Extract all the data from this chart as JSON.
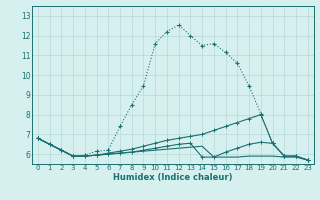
{
  "xlabel": "Humidex (Indice chaleur)",
  "bg_color": "#d6f0f0",
  "grid_color": "#b8d8d8",
  "line_color": "#1a7070",
  "xlim": [
    -0.5,
    23.5
  ],
  "ylim": [
    5.5,
    13.5
  ],
  "xticks": [
    0,
    1,
    2,
    3,
    4,
    5,
    6,
    7,
    8,
    9,
    10,
    11,
    12,
    13,
    14,
    15,
    16,
    17,
    18,
    19,
    20,
    21,
    22,
    23
  ],
  "yticks": [
    6,
    7,
    8,
    9,
    10,
    11,
    12,
    13
  ],
  "line1_x": [
    0,
    1,
    2,
    3,
    4,
    5,
    6,
    7,
    8,
    9,
    10,
    11,
    12,
    13,
    14,
    15,
    16,
    17,
    18,
    19,
    20,
    21,
    22,
    23
  ],
  "line1_y": [
    6.8,
    6.5,
    6.2,
    5.9,
    5.95,
    6.15,
    6.2,
    7.4,
    8.5,
    9.45,
    11.6,
    12.2,
    12.55,
    12.0,
    11.5,
    11.6,
    11.15,
    10.6,
    9.45,
    8.05,
    6.55,
    5.9,
    5.9,
    5.7
  ],
  "line2_x": [
    0,
    1,
    2,
    3,
    4,
    5,
    6,
    7,
    8,
    9,
    10,
    11,
    12,
    13,
    14,
    15,
    16,
    17,
    18,
    19,
    20,
    21,
    22,
    23
  ],
  "line2_y": [
    6.8,
    6.5,
    6.2,
    5.9,
    5.9,
    5.95,
    6.05,
    6.15,
    6.25,
    6.4,
    6.55,
    6.7,
    6.8,
    6.9,
    7.0,
    7.2,
    7.4,
    7.6,
    7.8,
    8.0,
    6.55,
    5.9,
    5.9,
    5.7
  ],
  "line3_x": [
    0,
    1,
    2,
    3,
    4,
    5,
    6,
    7,
    8,
    9,
    10,
    11,
    12,
    13,
    14,
    15,
    16,
    17,
    18,
    19,
    20,
    21,
    22,
    23
  ],
  "line3_y": [
    6.8,
    6.5,
    6.2,
    5.9,
    5.9,
    5.95,
    6.0,
    6.05,
    6.1,
    6.2,
    6.3,
    6.4,
    6.5,
    6.55,
    5.85,
    5.85,
    6.1,
    6.3,
    6.5,
    6.6,
    6.55,
    5.9,
    5.9,
    5.7
  ],
  "line4_x": [
    0,
    1,
    2,
    3,
    4,
    5,
    6,
    7,
    8,
    9,
    10,
    11,
    12,
    13,
    14,
    15,
    16,
    17,
    18,
    19,
    20,
    21,
    22,
    23
  ],
  "line4_y": [
    6.8,
    6.5,
    6.2,
    5.9,
    5.9,
    5.95,
    6.0,
    6.05,
    6.1,
    6.15,
    6.2,
    6.25,
    6.3,
    6.35,
    6.4,
    5.85,
    5.85,
    5.85,
    5.9,
    5.9,
    5.9,
    5.85,
    5.85,
    5.7
  ]
}
